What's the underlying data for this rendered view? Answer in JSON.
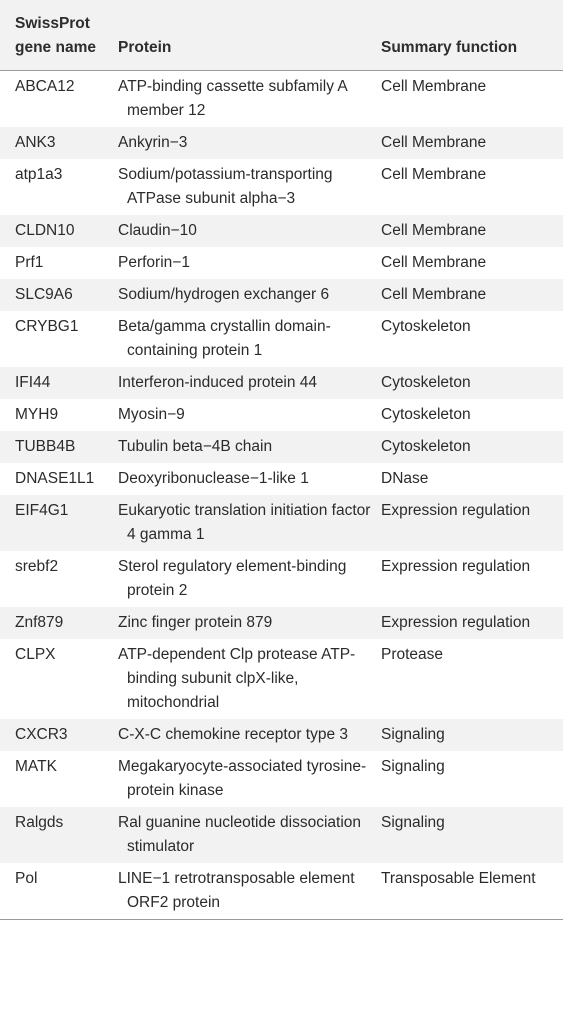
{
  "headers": {
    "gene": "SwissProt gene name",
    "protein": "Protein",
    "function": "Summary function"
  },
  "rows": [
    {
      "gene": "ABCA12",
      "protein": "ATP-binding cassette subfamily A member 12",
      "function": "Cell Membrane"
    },
    {
      "gene": "ANK3",
      "protein": "Ankyrin−3",
      "function": "Cell Membrane"
    },
    {
      "gene": "atp1a3",
      "protein": "Sodium/potassium-transporting ATPase subunit alpha−3",
      "function": "Cell Membrane"
    },
    {
      "gene": "CLDN10",
      "protein": "Claudin−10",
      "function": "Cell Membrane"
    },
    {
      "gene": "Prf1",
      "protein": "Perforin−1",
      "function": "Cell Membrane"
    },
    {
      "gene": "SLC9A6",
      "protein": "Sodium/hydrogen exchanger 6",
      "function": "Cell Membrane"
    },
    {
      "gene": "CRYBG1",
      "protein": "Beta/gamma crystallin domain-containing protein 1",
      "function": "Cytoskeleton"
    },
    {
      "gene": "IFI44",
      "protein": "Interferon-induced protein 44",
      "function": "Cytoskeleton"
    },
    {
      "gene": "MYH9",
      "protein": "Myosin−9",
      "function": "Cytoskeleton"
    },
    {
      "gene": "TUBB4B",
      "protein": "Tubulin beta−4B chain",
      "function": "Cytoskeleton"
    },
    {
      "gene": "DNASE1L1",
      "protein": "Deoxyribonuclease−1-like 1",
      "function": "DNase"
    },
    {
      "gene": "EIF4G1",
      "protein": "Eukaryotic translation initiation factor 4 gamma 1",
      "function": "Expression regulation"
    },
    {
      "gene": "srebf2",
      "protein": "Sterol regulatory element-binding protein 2",
      "function": "Expression regulation"
    },
    {
      "gene": "Znf879",
      "protein": "Zinc finger protein 879",
      "function": "Expression regulation"
    },
    {
      "gene": "CLPX",
      "protein": "ATP-dependent Clp protease ATP-binding subunit clpX-like, mitochondrial",
      "function": "Protease"
    },
    {
      "gene": "CXCR3",
      "protein": "C-X-C chemokine receptor type 3",
      "function": "Signaling"
    },
    {
      "gene": "MATK",
      "protein": "Megakaryocyte-associated tyrosine-protein kinase",
      "function": "Signaling"
    },
    {
      "gene": "Ralgds",
      "protein": "Ral guanine nucleotide dissociation stimulator",
      "function": "Signaling"
    },
    {
      "gene": "Pol",
      "protein": "LINE−1 retrotransposable element ORF2 protein",
      "function": "Transposable Element"
    }
  ]
}
